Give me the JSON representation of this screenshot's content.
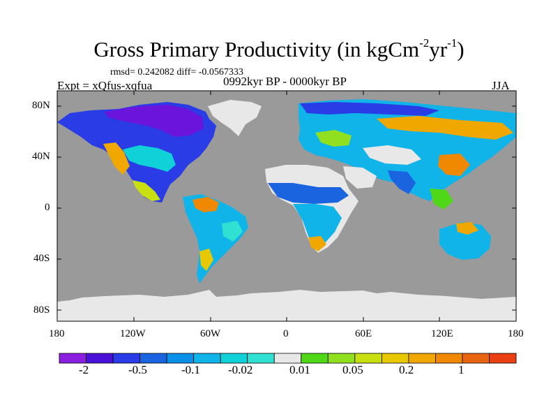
{
  "header": {
    "title_main": "Gross Primary Productivity (in kgCm",
    "title_exp1": "-2",
    "title_mid": "yr",
    "title_exp2": "-1",
    "title_end": ")",
    "stats": "rmsd= 0.242082 diff= -0.0567333",
    "experiment": "Expt = xQfus-xqfua",
    "period": "0992kyr BP - 0000kyr BP",
    "season": "JJA"
  },
  "axes": {
    "y_ticks": [
      "80N",
      "40N",
      "0",
      "40S",
      "80S"
    ],
    "x_ticks": [
      "180",
      "120W",
      "60W",
      "0",
      "60E",
      "120E",
      "180"
    ]
  },
  "colorbar": {
    "colors": [
      "#8a1fe0",
      "#4a10d8",
      "#2a3ce6",
      "#1a64e0",
      "#0a90e8",
      "#10b4e8",
      "#10d0d8",
      "#30e0d0",
      "#e8e8e8",
      "#50d818",
      "#90e020",
      "#c8e010",
      "#e8c800",
      "#f0a800",
      "#f08800",
      "#e86410",
      "#e84010"
    ],
    "labels": [
      "-2",
      "-0.5",
      "-0.1",
      "-0.02",
      "0.01",
      "0.05",
      "0.2",
      "1"
    ]
  },
  "palette": {
    "ocean": "#9a9a9a",
    "missing": "#e8e8e8",
    "coast": "#000000"
  }
}
